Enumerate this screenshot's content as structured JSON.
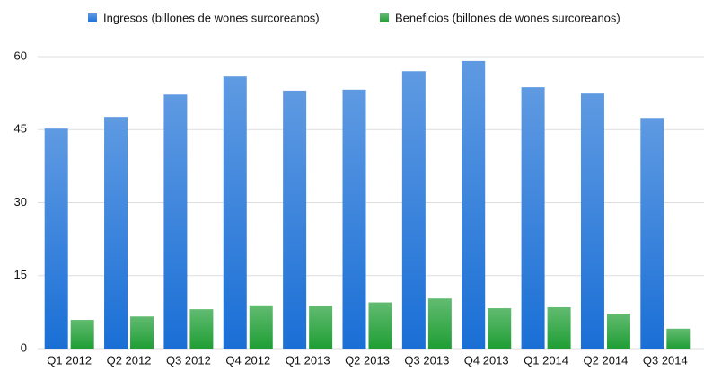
{
  "chart_data": {
    "type": "bar",
    "categories": [
      "Q1 2012",
      "Q2 2012",
      "Q3 2012",
      "Q4 2012",
      "Q1 2013",
      "Q2 2013",
      "Q3 2013",
      "Q4 2013",
      "Q1 2014",
      "Q2 2014",
      "Q3 2014"
    ],
    "series": [
      {
        "name": "Ingresos (billones de wones surcoreanos)",
        "color": "#1a6fd6",
        "values": [
          45.2,
          47.6,
          52.2,
          55.9,
          53.0,
          53.2,
          57.0,
          59.1,
          53.7,
          52.4,
          47.4
        ]
      },
      {
        "name": "Beneficios (billones de wones surcoreanos)",
        "color": "#1f9e34",
        "values": [
          5.9,
          6.6,
          8.1,
          8.9,
          8.8,
          9.5,
          10.3,
          8.3,
          8.5,
          7.2,
          4.1
        ]
      }
    ],
    "ylim": [
      0,
      60
    ],
    "yticks": [
      0,
      15,
      30,
      45,
      60
    ],
    "grid": true,
    "legend": "top"
  }
}
